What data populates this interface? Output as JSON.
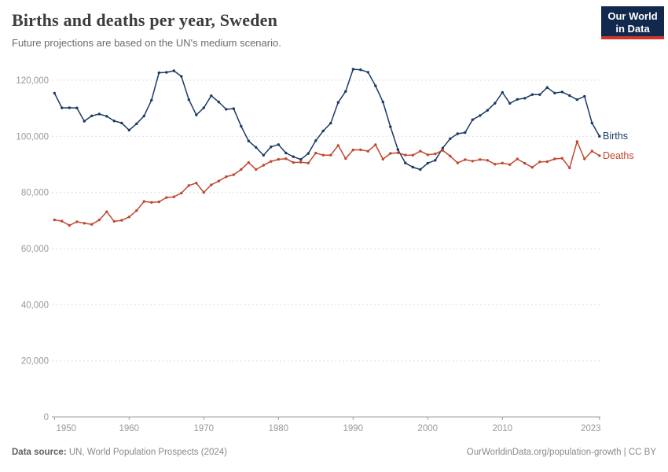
{
  "header": {
    "title": "Births and deaths per year, Sweden",
    "subtitle": "Future projections are based on the UN's medium scenario."
  },
  "logo": {
    "line1": "Our World",
    "line2": "in Data",
    "bg": "#12294d",
    "accent": "#d0352b"
  },
  "colors": {
    "births": "#1b3a64",
    "deaths": "#c0482f",
    "grid": "#dddddd",
    "axis": "#9c9c9c",
    "tick_label": "#999999"
  },
  "chart_data": {
    "type": "line",
    "title": "Births and deaths per year, Sweden",
    "xlabel": "",
    "ylabel": "",
    "x_range": [
      1950,
      2023
    ],
    "ylim": [
      0,
      126000
    ],
    "yticks": [
      0,
      20000,
      40000,
      60000,
      80000,
      100000,
      120000
    ],
    "xticks": [
      1950,
      1960,
      1970,
      1980,
      1990,
      2000,
      2010,
      2023
    ],
    "grid": "horizontal-dashed",
    "legend": "end-of-line-labels",
    "years": [
      1950,
      1951,
      1952,
      1953,
      1954,
      1955,
      1956,
      1957,
      1958,
      1959,
      1960,
      1961,
      1962,
      1963,
      1964,
      1965,
      1966,
      1967,
      1968,
      1969,
      1970,
      1971,
      1972,
      1973,
      1974,
      1975,
      1976,
      1977,
      1978,
      1979,
      1980,
      1981,
      1982,
      1983,
      1984,
      1985,
      1986,
      1987,
      1988,
      1989,
      1990,
      1991,
      1992,
      1993,
      1994,
      1995,
      1996,
      1997,
      1998,
      1999,
      2000,
      2001,
      2002,
      2003,
      2004,
      2005,
      2006,
      2007,
      2008,
      2009,
      2010,
      2011,
      2012,
      2013,
      2014,
      2015,
      2016,
      2017,
      2018,
      2019,
      2020,
      2021,
      2022,
      2023
    ],
    "series": [
      {
        "name": "Births",
        "color": "#1b3a64",
        "values": [
          115414,
          110168,
          110192,
          110144,
          105430,
          107305,
          107960,
          107168,
          105502,
          104743,
          102219,
          104501,
          107284,
          112903,
          122664,
          122806,
          123354,
          121360,
          113087,
          107622,
          110150,
          114484,
          112273,
          109663,
          109874,
          103632,
          98345,
          96057,
          93248,
          96255,
          97064,
          94065,
          92748,
          91780,
          93889,
          98463,
          101950,
          104699,
          112080,
          116022,
          123938,
          123737,
          122848,
          117998,
          112257,
          103422,
          95297,
          90502,
          89028,
          88173,
          90441,
          91466,
          95815,
          99157,
          100928,
          101346,
          105913,
          107421,
          109301,
          111801,
          115641,
          111770,
          113177,
          113593,
          114907,
          114870,
          117425,
          115416,
          115832,
          114523,
          113077,
          114263,
          104734,
          100051
        ]
      },
      {
        "name": "Deaths",
        "color": "#c0482f",
        "values": [
          70225,
          69799,
          68270,
          69553,
          69029,
          68634,
          70205,
          73132,
          69691,
          70077,
          71260,
          73555,
          76791,
          76460,
          76661,
          78194,
          78440,
          79783,
          82476,
          83352,
          80026,
          82717,
          84056,
          85640,
          86316,
          88208,
          90677,
          88202,
          89681,
          91074,
          91800,
          92034,
          90671,
          90791,
          90483,
          94032,
          93295,
          93307,
          96743,
          92110,
          95161,
          95202,
          94710,
          97008,
          91844,
          93929,
          94133,
          93326,
          93271,
          94726,
          93461,
          93752,
          95009,
          92961,
          90532,
          91710,
          91177,
          91729,
          91449,
          90080,
          90487,
          89938,
          91938,
          90402,
          88976,
          90907,
          90982,
          91972,
          92185,
          88766,
          98124,
          91958,
          94744,
          93107
        ]
      }
    ]
  },
  "footer": {
    "source_label": "Data source:",
    "source_text": " UN, World Population Prospects (2024)",
    "right": "OurWorldinData.org/population-growth | CC BY"
  }
}
